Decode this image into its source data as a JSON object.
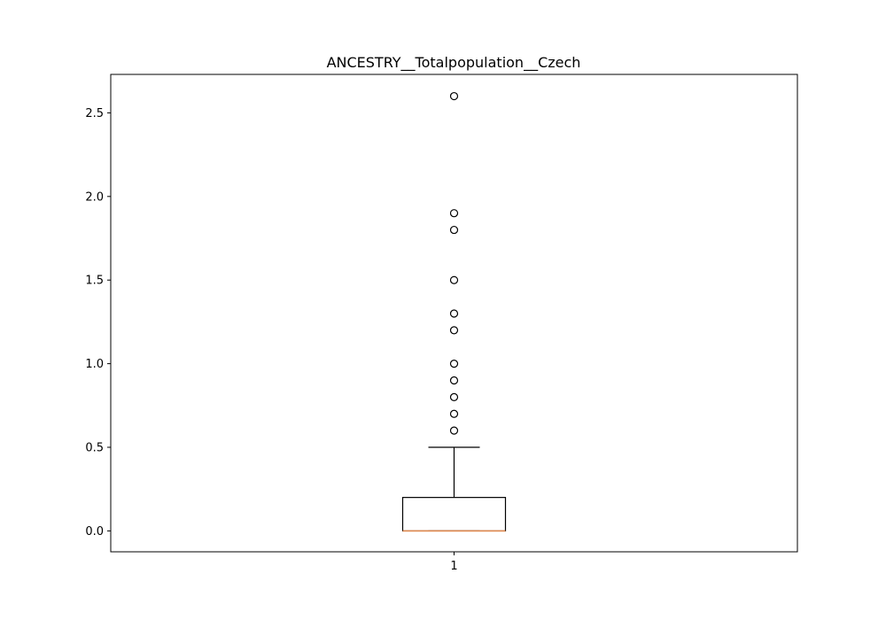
{
  "chart_data": {
    "type": "box",
    "title": "ANCESTRY__Totalpopulation__Czech",
    "xlabel": "",
    "ylabel": "",
    "categories": [
      "1"
    ],
    "ylim": [
      -0.125,
      2.73
    ],
    "yticks": [
      0.0,
      0.5,
      1.0,
      1.5,
      2.0,
      2.5
    ],
    "ytick_labels": [
      "0.0",
      "0.5",
      "1.0",
      "1.5",
      "2.0",
      "2.5"
    ],
    "grid": false,
    "box": {
      "q1": 0.0,
      "median": 0.0,
      "q3": 0.2,
      "whisker_low": 0.0,
      "whisker_high": 0.5,
      "outliers": [
        0.6,
        0.7,
        0.8,
        0.9,
        1.0,
        1.2,
        1.3,
        1.5,
        1.8,
        1.9,
        2.6
      ]
    },
    "colors": {
      "box": "#000000",
      "median": "#e08a50",
      "outlier": "#000000"
    }
  }
}
